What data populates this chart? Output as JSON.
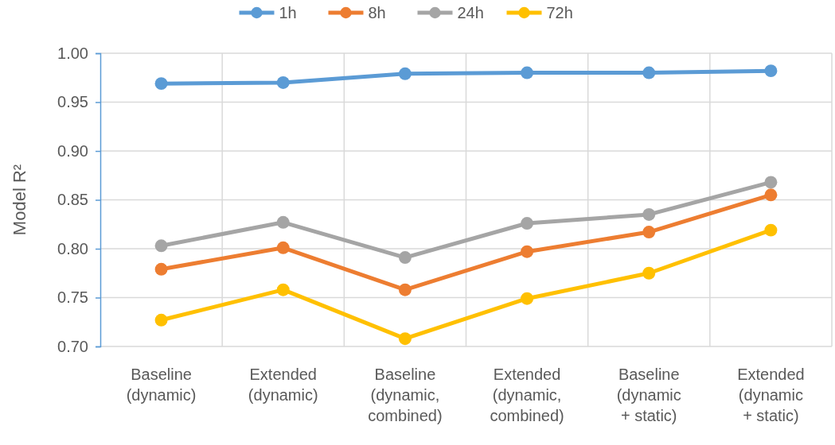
{
  "chart_data": {
    "type": "line",
    "ylabel": "Model R²",
    "categories": [
      "Baseline (dynamic)",
      "Extended (dynamic)",
      "Baseline (dynamic, combined)",
      "Extended (dynamic, combined)",
      "Baseline (dynamic + static)",
      "Extended (dynamic + static)"
    ],
    "series": [
      {
        "name": "1h",
        "color": "#5b9bd5",
        "values": [
          0.969,
          0.97,
          0.979,
          0.98,
          0.98,
          0.982
        ]
      },
      {
        "name": "8h",
        "color": "#ed7d31",
        "values": [
          0.779,
          0.801,
          0.758,
          0.797,
          0.817,
          0.855
        ]
      },
      {
        "name": "24h",
        "color": "#a5a5a5",
        "values": [
          0.803,
          0.827,
          0.791,
          0.826,
          0.835,
          0.868
        ]
      },
      {
        "name": "72h",
        "color": "#ffc000",
        "values": [
          0.727,
          0.758,
          0.708,
          0.749,
          0.775,
          0.819
        ]
      }
    ],
    "ylim": [
      0.7,
      1.0
    ],
    "yticks": [
      {
        "value": 0.7,
        "label": "0.70"
      },
      {
        "value": 0.75,
        "label": "0.75"
      },
      {
        "value": 0.8,
        "label": "0.80"
      },
      {
        "value": 0.85,
        "label": "0.85"
      },
      {
        "value": 0.9,
        "label": "0.90"
      },
      {
        "value": 0.95,
        "label": "0.95"
      },
      {
        "value": 1.0,
        "label": "1.00"
      }
    ],
    "grid": true,
    "legend": "top",
    "marker": "circle",
    "line_style": "solid"
  }
}
